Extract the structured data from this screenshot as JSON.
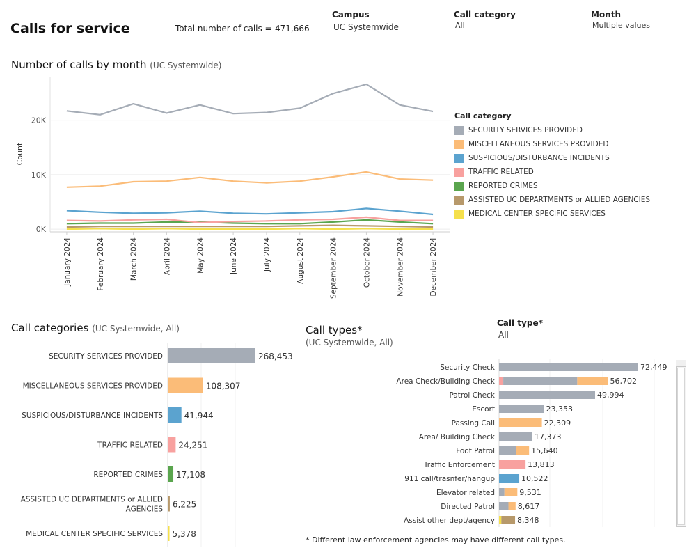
{
  "header": {
    "title": "Calls for service",
    "total_label": "Total number of calls =",
    "total_value": "471,666"
  },
  "filters": {
    "campus": {
      "label": "Campus",
      "value": "UC Systemwide"
    },
    "category": {
      "label": "Call category",
      "value": "All"
    },
    "month": {
      "label": "Month",
      "value": "Multiple values"
    },
    "call_type": {
      "label": "Call type*",
      "value": "All"
    }
  },
  "colors": {
    "security": "#a5acb6",
    "misc": "#fbbc78",
    "suspicious": "#5ba3cf",
    "traffic": "#f8a19f",
    "crimes": "#5aa54e",
    "assisted": "#b7996b",
    "medical": "#f5e04c"
  },
  "line_section": {
    "title": "Number of calls by month",
    "subtitle": "(UC Systemwide)"
  },
  "legend": {
    "title": "Call category",
    "items": [
      {
        "label": "SECURITY SERVICES PROVIDED",
        "color": "#a5acb6"
      },
      {
        "label": "MISCELLANEOUS SERVICES PROVIDED",
        "color": "#fbbc78"
      },
      {
        "label": "SUSPICIOUS/DISTURBANCE INCIDENTS",
        "color": "#5ba3cf"
      },
      {
        "label": "TRAFFIC RELATED",
        "color": "#f8a19f"
      },
      {
        "label": "REPORTED CRIMES",
        "color": "#5aa54e"
      },
      {
        "label": "ASSISTED UC DEPARTMENTS or ALLIED AGENCIES",
        "color": "#b7996b"
      },
      {
        "label": "MEDICAL CENTER SPECIFIC SERVICES",
        "color": "#f5e04c"
      }
    ]
  },
  "categories_section": {
    "title": "Call categories",
    "subtitle": "(UC Systemwide, All)"
  },
  "types_section": {
    "title": "Call types*",
    "subtitle": "(UC Systemwide, All)"
  },
  "footnote": "* Different law enforcement agencies may have different call types.",
  "chart_data": [
    {
      "type": "line",
      "title": "Number of calls by month",
      "xlabel": "",
      "ylabel": "Count",
      "ylim": [
        -500,
        28000
      ],
      "yticks": [
        0,
        10000,
        20000
      ],
      "ytick_labels": [
        "0K",
        "10K",
        "20K"
      ],
      "categories": [
        "January 2024",
        "February 2024",
        "March 2024",
        "April 2024",
        "May 2024",
        "June 2024",
        "July 2024",
        "August 2024",
        "September 2024",
        "October 2024",
        "November 2024",
        "December 2024"
      ],
      "series": [
        {
          "name": "SECURITY SERVICES PROVIDED",
          "values": [
            21700,
            21000,
            23000,
            21300,
            22800,
            21200,
            21400,
            22200,
            24900,
            26600,
            22800,
            21600
          ]
        },
        {
          "name": "MISCELLANEOUS SERVICES PROVIDED",
          "values": [
            7700,
            7900,
            8700,
            8800,
            9500,
            8800,
            8500,
            8800,
            9600,
            10500,
            9200,
            9000
          ]
        },
        {
          "name": "SUSPICIOUS/DISTURBANCE INCIDENTS",
          "values": [
            3400,
            3100,
            2900,
            3000,
            3300,
            2900,
            2800,
            3000,
            3200,
            3800,
            3300,
            2700
          ]
        },
        {
          "name": "TRAFFIC RELATED",
          "values": [
            1600,
            1500,
            1700,
            1800,
            1200,
            1400,
            1500,
            1700,
            1800,
            2200,
            1600,
            1600
          ]
        },
        {
          "name": "REPORTED CRIMES",
          "values": [
            1000,
            1100,
            1100,
            1300,
            1300,
            1100,
            1000,
            1000,
            1300,
            1700,
            1300,
            1000
          ]
        },
        {
          "name": "ASSISTED UC DEPARTMENTS or ALLIED AGENCIES",
          "values": [
            400,
            500,
            500,
            500,
            500,
            500,
            500,
            600,
            700,
            600,
            500,
            400
          ]
        },
        {
          "name": "MEDICAL CENTER SPECIFIC SERVICES",
          "values": [
            0,
            100,
            0,
            100,
            0,
            0,
            0,
            100,
            0,
            100,
            0,
            0
          ]
        }
      ]
    },
    {
      "type": "bar",
      "title": "Call categories",
      "orientation": "horizontal",
      "categories": [
        "SECURITY SERVICES PROVIDED",
        "MISCELLANEOUS SERVICES PROVIDED",
        "SUSPICIOUS/DISTURBANCE INCIDENTS",
        "TRAFFIC RELATED",
        "REPORTED CRIMES",
        "ASSISTED UC DEPARTMENTS or ALLIED AGENCIES",
        "MEDICAL CENTER SPECIFIC SERVICES"
      ],
      "values": [
        268453,
        108307,
        41944,
        24251,
        17108,
        6225,
        5378
      ],
      "value_labels": [
        "268,453",
        "108,307",
        "41,944",
        "24,251",
        "17,108",
        "6,225",
        "5,378"
      ]
    },
    {
      "type": "bar",
      "title": "Call types*",
      "orientation": "horizontal",
      "stacked": true,
      "categories": [
        "Security Check",
        "Area Check/Building Check",
        "Patrol Check",
        "Escort",
        "Passing Call",
        "Area/ Building Check",
        "Foot Patrol",
        "Traffic Enforcement",
        "911 call/trasnfer/hangup",
        "Elevator related",
        "Directed Patrol",
        "Assist other dept/agency"
      ],
      "totals": [
        72449,
        56702,
        49994,
        23353,
        22309,
        17373,
        15640,
        13813,
        10522,
        9531,
        8617,
        8348
      ],
      "total_labels": [
        "72,449",
        "56,702",
        "49,994",
        "23,353",
        "22,309",
        "17,373",
        "15,640",
        "13,813",
        "10,522",
        "9,531",
        "8,617",
        "8,348"
      ],
      "series": [
        {
          "name": "TRAFFIC RELATED",
          "values": [
            0,
            2200,
            0,
            0,
            0,
            0,
            0,
            13813,
            0,
            0,
            0,
            0
          ]
        },
        {
          "name": "SECURITY SERVICES PROVIDED",
          "values": [
            72449,
            38500,
            49994,
            23353,
            0,
            17373,
            9000,
            0,
            0,
            2800,
            4900,
            0
          ]
        },
        {
          "name": "MISCELLANEOUS SERVICES PROVIDED",
          "values": [
            0,
            16002,
            0,
            0,
            22309,
            0,
            6640,
            0,
            0,
            6731,
            3717,
            0
          ]
        },
        {
          "name": "SUSPICIOUS/DISTURBANCE INCIDENTS",
          "values": [
            0,
            0,
            0,
            0,
            0,
            0,
            0,
            0,
            10522,
            0,
            0,
            0
          ]
        },
        {
          "name": "MEDICAL CENTER SPECIFIC SERVICES",
          "values": [
            0,
            0,
            0,
            0,
            0,
            0,
            0,
            0,
            0,
            0,
            0,
            1200
          ]
        },
        {
          "name": "ASSISTED UC DEPARTMENTS or ALLIED AGENCIES",
          "values": [
            0,
            0,
            0,
            0,
            0,
            0,
            0,
            0,
            0,
            0,
            0,
            7148
          ]
        }
      ]
    }
  ]
}
